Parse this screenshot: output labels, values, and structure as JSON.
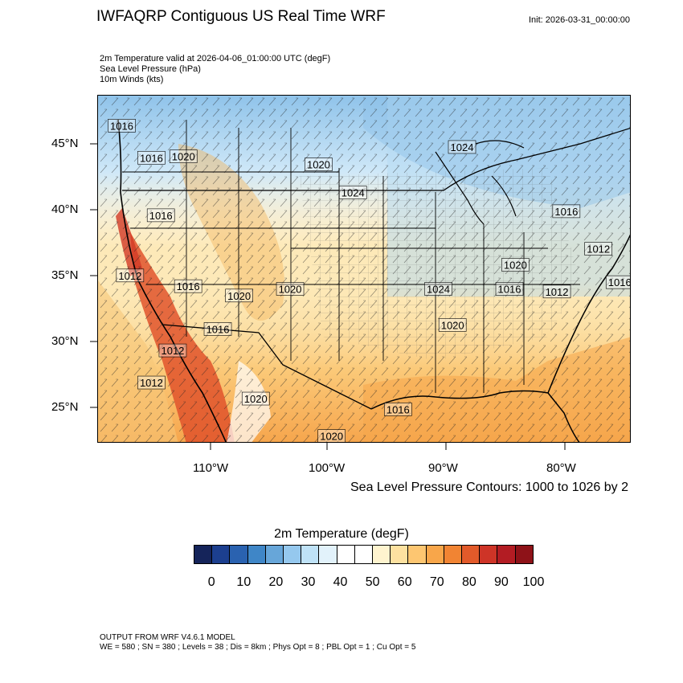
{
  "header": {
    "title": "IWFAQRP Contiguous US Real Time WRF",
    "init": "Init: 2026-03-31_00:00:00",
    "field_lines": [
      "2m Temperature valid at 2026-04-06_01:00:00 UTC   (degF)",
      "Sea Level Pressure   (hPa)",
      "10m Winds   (kts)"
    ]
  },
  "map": {
    "lat_labels": [
      "45°N",
      "40°N",
      "35°N",
      "30°N",
      "25°N"
    ],
    "lon_labels": [
      "110°W",
      "100°W",
      "90°W",
      "80°W"
    ],
    "lon_range": [
      -119.5,
      -74.5
    ],
    "lat_range": [
      22.5,
      48.5
    ],
    "pressure_labels": [
      {
        "text": "1016",
        "lon": -117.5,
        "lat": 46.2
      },
      {
        "text": "1016",
        "lon": -115.0,
        "lat": 43.8
      },
      {
        "text": "1020",
        "lon": -112.3,
        "lat": 43.9
      },
      {
        "text": "1020",
        "lon": -100.9,
        "lat": 43.3
      },
      {
        "text": "1024",
        "lon": -98.0,
        "lat": 41.2
      },
      {
        "text": "1024",
        "lon": -88.8,
        "lat": 44.6
      },
      {
        "text": "1016",
        "lon": -114.2,
        "lat": 39.5
      },
      {
        "text": "1012",
        "lon": -116.8,
        "lat": 35.0
      },
      {
        "text": "1016",
        "lon": -111.9,
        "lat": 34.2
      },
      {
        "text": "1020",
        "lon": -107.6,
        "lat": 33.5
      },
      {
        "text": "1020",
        "lon": -103.3,
        "lat": 34.0
      },
      {
        "text": "1024",
        "lon": -90.8,
        "lat": 34.0
      },
      {
        "text": "1020",
        "lon": -89.6,
        "lat": 31.3
      },
      {
        "text": "1016",
        "lon": -109.4,
        "lat": 31.0
      },
      {
        "text": "1012",
        "lon": -113.2,
        "lat": 29.4
      },
      {
        "text": "1012",
        "lon": -115.0,
        "lat": 27.0
      },
      {
        "text": "1020",
        "lon": -106.2,
        "lat": 25.8
      },
      {
        "text": "1016",
        "lon": -94.2,
        "lat": 25.0
      },
      {
        "text": "1020",
        "lon": -99.8,
        "lat": 23.0
      },
      {
        "text": "1016",
        "lon": -80.0,
        "lat": 39.8
      },
      {
        "text": "1012",
        "lon": -77.3,
        "lat": 37.0
      },
      {
        "text": "1016",
        "lon": -75.5,
        "lat": 34.5
      },
      {
        "text": "1012",
        "lon": -80.8,
        "lat": 33.8
      },
      {
        "text": "1016",
        "lon": -84.8,
        "lat": 34.0
      },
      {
        "text": "1020",
        "lon": -84.3,
        "lat": 35.8
      }
    ]
  },
  "contour_note": "Sea Level Pressure Contours: 1000 to 1026 by 2",
  "colorbar": {
    "title": "2m Temperature  (degF)",
    "ticks": [
      "0",
      "10",
      "20",
      "30",
      "40",
      "50",
      "60",
      "70",
      "80",
      "90",
      "100"
    ],
    "colors": [
      "#15245a",
      "#1c3f8f",
      "#2a62b0",
      "#3f86c7",
      "#67a6d9",
      "#95c8ee",
      "#bfe2f7",
      "#e2f2fb",
      "#ffffff",
      "#ffffff",
      "#fff4cf",
      "#fde1a0",
      "#fdc671",
      "#f8a64a",
      "#f18433",
      "#e25a2a",
      "#ce3427",
      "#b31c23",
      "#8e1218"
    ]
  },
  "footer": {
    "line1": "OUTPUT FROM WRF V4.6.1 MODEL",
    "line2": "WE = 580 ; SN = 380 ; Levels = 38 ; Dis = 8km ; Phys Opt = 8 ; PBL Opt = 1 ; Cu Opt = 5"
  }
}
